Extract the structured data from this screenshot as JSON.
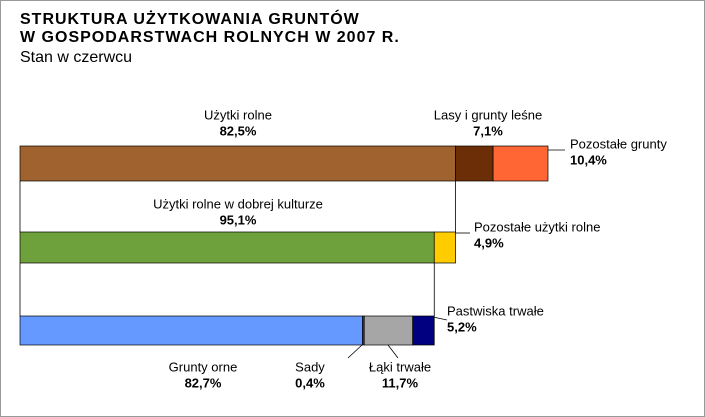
{
  "chart_data": {
    "type": "nested-bar",
    "title": [
      "STRUKTURA UŻYTKOWANIA GRUNTÓW",
      "W GOSPODARSTWACH ROLNYCH W 2007 R."
    ],
    "subtitle": "Stan w czerwcu",
    "bars": [
      {
        "names": [
          "Użytki rolne",
          "Lasy i grunty leśne",
          "Pozostałe grunty"
        ],
        "values": [
          82.5,
          7.1,
          10.4
        ],
        "value_labels": [
          "82,5%",
          "7,1%",
          "10,4%"
        ],
        "colors": [
          "#a0632f",
          "#6b2e07",
          "#ff6633"
        ]
      },
      {
        "names": [
          "Użytki rolne w dobrej kulturze",
          "Pozostałe użytki rolne"
        ],
        "values": [
          95.1,
          4.9
        ],
        "value_labels": [
          "95,1%",
          "4,9%"
        ],
        "colors": [
          "#6ea13b",
          "#ffcc00"
        ]
      },
      {
        "names": [
          "Grunty orne",
          "Sady",
          "Łąki trwałe",
          "Pastwiska trwałe"
        ],
        "values": [
          82.7,
          0.4,
          11.7,
          5.2
        ],
        "value_labels": [
          "82,7%",
          "0,4%",
          "11,7%",
          "5,2%"
        ],
        "colors": [
          "#6699ff",
          "#333399",
          "#a6a6a6",
          "#000080"
        ]
      }
    ]
  }
}
